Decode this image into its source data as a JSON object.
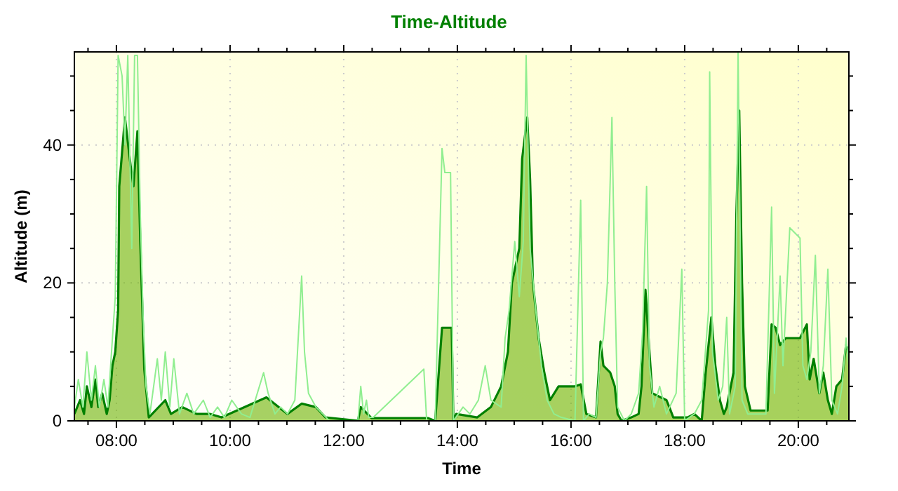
{
  "chart_data": {
    "type": "area",
    "title": "Time-Altitude",
    "xlabel": "Time",
    "ylabel": "Altitude (m)",
    "xlim": [
      7.26,
      20.89
    ],
    "xticks": [
      {
        "value": 7.5,
        "label": null
      },
      {
        "value": 8,
        "label": "08:00"
      },
      {
        "value": 8.5,
        "label": null
      },
      {
        "value": 9,
        "label": null
      },
      {
        "value": 9.5,
        "label": null
      },
      {
        "value": 10,
        "label": "10:00"
      },
      {
        "value": 10.5,
        "label": null
      },
      {
        "value": 11,
        "label": null
      },
      {
        "value": 11.5,
        "label": null
      },
      {
        "value": 12,
        "label": "12:00"
      },
      {
        "value": 12.5,
        "label": null
      },
      {
        "value": 13,
        "label": null
      },
      {
        "value": 13.5,
        "label": null
      },
      {
        "value": 14,
        "label": "14:00"
      },
      {
        "value": 14.5,
        "label": null
      },
      {
        "value": 15,
        "label": null
      },
      {
        "value": 15.5,
        "label": null
      },
      {
        "value": 16,
        "label": "16:00"
      },
      {
        "value": 16.5,
        "label": null
      },
      {
        "value": 17,
        "label": null
      },
      {
        "value": 17.5,
        "label": null
      },
      {
        "value": 18,
        "label": "18:00"
      },
      {
        "value": 18.5,
        "label": null
      },
      {
        "value": 19,
        "label": null
      },
      {
        "value": 19.5,
        "label": null
      },
      {
        "value": 20,
        "label": "20:00"
      },
      {
        "value": 20.5,
        "label": null
      }
    ],
    "ylim": [
      0,
      53.5
    ],
    "yticks": [
      0,
      {
        "value": 5,
        "label": null
      },
      {
        "value": 10,
        "label": null
      },
      {
        "value": 15,
        "label": null
      },
      20,
      {
        "value": 25,
        "label": null
      },
      {
        "value": 30,
        "label": null
      },
      {
        "value": 35,
        "label": null
      },
      40,
      {
        "value": 45,
        "label": null
      },
      {
        "value": 50,
        "label": null
      }
    ],
    "grid": true,
    "series": [
      {
        "type": "line",
        "color": "#90ee90",
        "x": [
          7.26,
          7.33,
          7.41,
          7.48,
          7.56,
          7.63,
          7.7,
          7.78,
          7.85,
          7.93,
          7.98,
          8.03,
          8.1,
          8.15,
          8.2,
          8.27,
          8.32,
          8.37,
          8.42,
          8.47,
          8.52,
          8.59,
          8.72,
          8.79,
          8.86,
          8.94,
          9.01,
          9.11,
          9.24,
          9.36,
          9.53,
          9.65,
          9.78,
          9.9,
          10.03,
          10.2,
          10.35,
          10.59,
          10.67,
          10.79,
          10.89,
          11.01,
          11.14,
          11.26,
          11.31,
          11.38,
          11.51,
          11.63,
          11.75,
          12.25,
          12.3,
          12.35,
          12.4,
          12.44,
          12.52,
          13.41,
          13.46,
          13.61,
          13.73,
          13.78,
          13.88,
          13.93,
          14.1,
          14.22,
          14.37,
          14.49,
          14.59,
          14.77,
          14.84,
          14.91,
          15.01,
          15.09,
          15.16,
          15.21,
          15.28,
          15.38,
          15.48,
          15.58,
          15.7,
          15.83,
          16.07,
          16.17,
          16.22,
          16.32,
          16.44,
          16.52,
          16.57,
          16.64,
          16.72,
          16.77,
          16.82,
          16.94,
          17.06,
          17.19,
          17.26,
          17.31,
          17.33,
          17.38,
          17.46,
          17.56,
          17.68,
          17.85,
          17.95,
          18.0,
          18.17,
          18.3,
          18.42,
          18.44,
          18.49,
          18.59,
          18.67,
          18.74,
          18.79,
          18.89,
          18.94,
          19.01,
          19.11,
          19.28,
          19.43,
          19.53,
          19.58,
          19.68,
          19.73,
          19.85,
          20.03,
          20.08,
          20.15,
          20.22,
          20.3,
          20.37,
          20.44,
          20.52,
          20.59,
          20.69,
          20.77,
          20.84,
          20.89
        ],
        "values": [
          2,
          6,
          2,
          10,
          3,
          8,
          2,
          6,
          2,
          12,
          18,
          53,
          50,
          40,
          53,
          25,
          53,
          53,
          30,
          15,
          5,
          1,
          9,
          3,
          10,
          2,
          9,
          1,
          4,
          1,
          3,
          0.5,
          2,
          0.5,
          3,
          1,
          0.5,
          7,
          4,
          1,
          2,
          1,
          3,
          21,
          10,
          4,
          2,
          1,
          0,
          0,
          5,
          1,
          3,
          0.5,
          0.5,
          7.5,
          0,
          0,
          39.5,
          36,
          36,
          0,
          2,
          1,
          3,
          8,
          3,
          2,
          12,
          16,
          26,
          18,
          26,
          53,
          25,
          16,
          8,
          3,
          1,
          0.5,
          0,
          32,
          0,
          1,
          0.5,
          10,
          12,
          20,
          44,
          20,
          2,
          0,
          1,
          4,
          13,
          28,
          34,
          8,
          2,
          5,
          1,
          4,
          22,
          0,
          1,
          3,
          16,
          50.6,
          10,
          3,
          5,
          15,
          1,
          5,
          53.5,
          3,
          1,
          1,
          1,
          31,
          4,
          21,
          8,
          28,
          26.5,
          8,
          6,
          10,
          24,
          4,
          8,
          22,
          3,
          1,
          5,
          12,
          8
        ]
      },
      {
        "color": "#008000",
        "x": [
          7.26,
          7.36,
          7.43,
          7.48,
          7.56,
          7.63,
          7.68,
          7.75,
          7.83,
          7.88,
          7.93,
          7.98,
          8.03,
          8.05,
          8.15,
          8.25,
          8.3,
          8.37,
          8.42,
          8.49,
          8.57,
          8.86,
          8.96,
          9.16,
          9.41,
          9.65,
          9.85,
          10.64,
          11.01,
          11.26,
          11.51,
          11.68,
          12.25,
          12.3,
          12.49,
          13.48,
          13.61,
          13.73,
          13.9,
          13.93,
          13.98,
          14.35,
          14.59,
          14.77,
          14.89,
          14.96,
          15.09,
          15.14,
          15.23,
          15.28,
          15.33,
          15.43,
          15.53,
          15.63,
          15.78,
          16.07,
          16.17,
          16.27,
          16.44,
          16.52,
          16.57,
          16.69,
          16.77,
          16.82,
          16.89,
          17.06,
          17.19,
          17.24,
          17.31,
          17.38,
          17.43,
          17.68,
          17.73,
          17.8,
          18.05,
          18.17,
          18.3,
          18.37,
          18.47,
          18.54,
          18.62,
          18.69,
          18.74,
          18.86,
          18.91,
          18.96,
          19.01,
          19.06,
          19.16,
          19.46,
          19.53,
          19.6,
          19.68,
          19.78,
          20.03,
          20.15,
          20.2,
          20.27,
          20.37,
          20.44,
          20.52,
          20.59,
          20.67,
          20.77,
          20.84,
          20.89
        ],
        "values": [
          1,
          3,
          1,
          5,
          2,
          6,
          2,
          4,
          1,
          3,
          8,
          10,
          16,
          34,
          44,
          37,
          34,
          42,
          26,
          7.5,
          0.5,
          3,
          1,
          2,
          1,
          1,
          0.5,
          3.4,
          1,
          2.5,
          2,
          0.5,
          0,
          2,
          0.4,
          0.4,
          0,
          13.5,
          13.5,
          0,
          1,
          0.5,
          2,
          5,
          10,
          20,
          25,
          38,
          44,
          35,
          20,
          12,
          7,
          3,
          5,
          5,
          5.3,
          1,
          0.5,
          11.5,
          8,
          7,
          5,
          1,
          0,
          0.5,
          1,
          5,
          19,
          10,
          4,
          3,
          2,
          0.5,
          0.5,
          1,
          0,
          7,
          15,
          8,
          3,
          1,
          2,
          7,
          30,
          45,
          20,
          5,
          1.5,
          1.5,
          14,
          13.5,
          11,
          12,
          12,
          14,
          6,
          9,
          4,
          7,
          3,
          1,
          5,
          6,
          11,
          10
        ]
      }
    ]
  }
}
